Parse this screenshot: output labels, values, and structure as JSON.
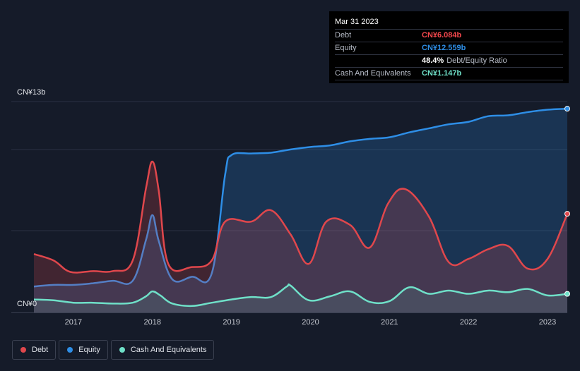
{
  "colors": {
    "debt": "#e0474c",
    "equity": "#2e8ee6",
    "cash": "#6fe0c8",
    "grid": "#2b3242",
    "background": "#151b29"
  },
  "tooltip": {
    "date": "Mar 31 2023",
    "rows": [
      {
        "label": "Debt",
        "value": "CN¥6.084b",
        "color": "#f5484d"
      },
      {
        "label": "Equity",
        "value": "CN¥12.559b",
        "color": "#2e8ee6"
      },
      {
        "label": "",
        "value": "48.4%",
        "sub": "Debt/Equity Ratio",
        "color": "#ffffff"
      },
      {
        "label": "Cash And Equivalents",
        "value": "CN¥1.147b",
        "color": "#6fe0c8"
      }
    ]
  },
  "legend": [
    {
      "label": "Debt",
      "color": "#e0474c"
    },
    {
      "label": "Equity",
      "color": "#2e8ee6"
    },
    {
      "label": "Cash And Equivalents",
      "color": "#6fe0c8"
    }
  ],
  "chart_data": {
    "type": "area",
    "y_top_label": "CN¥13b",
    "y_bottom_label": "CN¥0",
    "ylim": [
      0,
      13
    ],
    "xlim": [
      2016.5,
      2023.25
    ],
    "x_ticks": [
      "2017",
      "2018",
      "2019",
      "2020",
      "2021",
      "2022",
      "2023"
    ],
    "grid": true,
    "legend_position": "bottom-left",
    "series": [
      {
        "name": "Debt",
        "x": [
          2016.5,
          2016.75,
          2016.96,
          2017.25,
          2017.5,
          2017.75,
          2017.92,
          2018.0,
          2018.08,
          2018.2,
          2018.5,
          2018.75,
          2018.92,
          2019.25,
          2019.5,
          2019.75,
          2019.98,
          2020.2,
          2020.5,
          2020.75,
          2020.98,
          2021.2,
          2021.5,
          2021.75,
          2022.0,
          2022.25,
          2022.5,
          2022.75,
          2023.0,
          2023.25
        ],
        "y": [
          3.6,
          3.2,
          2.5,
          2.55,
          2.55,
          3.2,
          7.7,
          9.3,
          7.5,
          3.0,
          2.8,
          3.2,
          5.6,
          5.6,
          6.3,
          4.8,
          3.0,
          5.6,
          5.4,
          4.0,
          6.7,
          7.6,
          5.9,
          3.1,
          3.3,
          3.9,
          4.1,
          2.7,
          3.3,
          6.084
        ]
      },
      {
        "name": "Equity",
        "x": [
          2016.5,
          2016.75,
          2017.0,
          2017.25,
          2017.5,
          2017.75,
          2017.92,
          2018.0,
          2018.08,
          2018.25,
          2018.5,
          2018.75,
          2018.92,
          2019.0,
          2019.25,
          2019.5,
          2019.75,
          2020.0,
          2020.25,
          2020.5,
          2020.75,
          2021.0,
          2021.25,
          2021.5,
          2021.75,
          2022.0,
          2022.25,
          2022.5,
          2022.75,
          2023.0,
          2023.25
        ],
        "y": [
          1.6,
          1.7,
          1.7,
          1.8,
          1.95,
          1.95,
          4.5,
          6.0,
          4.4,
          2.05,
          2.2,
          2.4,
          8.5,
          9.7,
          9.8,
          9.85,
          10.05,
          10.2,
          10.3,
          10.55,
          10.7,
          10.8,
          11.1,
          11.35,
          11.6,
          11.75,
          12.1,
          12.15,
          12.35,
          12.5,
          12.559
        ]
      },
      {
        "name": "Cash And Equivalents",
        "x": [
          2016.5,
          2016.75,
          2017.0,
          2017.25,
          2017.5,
          2017.75,
          2017.92,
          2018.0,
          2018.1,
          2018.25,
          2018.5,
          2018.75,
          2019.0,
          2019.25,
          2019.5,
          2019.7,
          2019.75,
          2019.98,
          2020.25,
          2020.5,
          2020.75,
          2021.0,
          2021.25,
          2021.5,
          2021.75,
          2022.0,
          2022.25,
          2022.5,
          2022.75,
          2023.0,
          2023.25
        ],
        "y": [
          0.8,
          0.75,
          0.6,
          0.6,
          0.55,
          0.6,
          1.0,
          1.3,
          1.05,
          0.55,
          0.4,
          0.6,
          0.8,
          0.95,
          0.95,
          1.6,
          1.65,
          0.75,
          1.0,
          1.3,
          0.65,
          0.7,
          1.55,
          1.15,
          1.35,
          1.15,
          1.35,
          1.25,
          1.45,
          1.05,
          1.147
        ]
      }
    ]
  }
}
